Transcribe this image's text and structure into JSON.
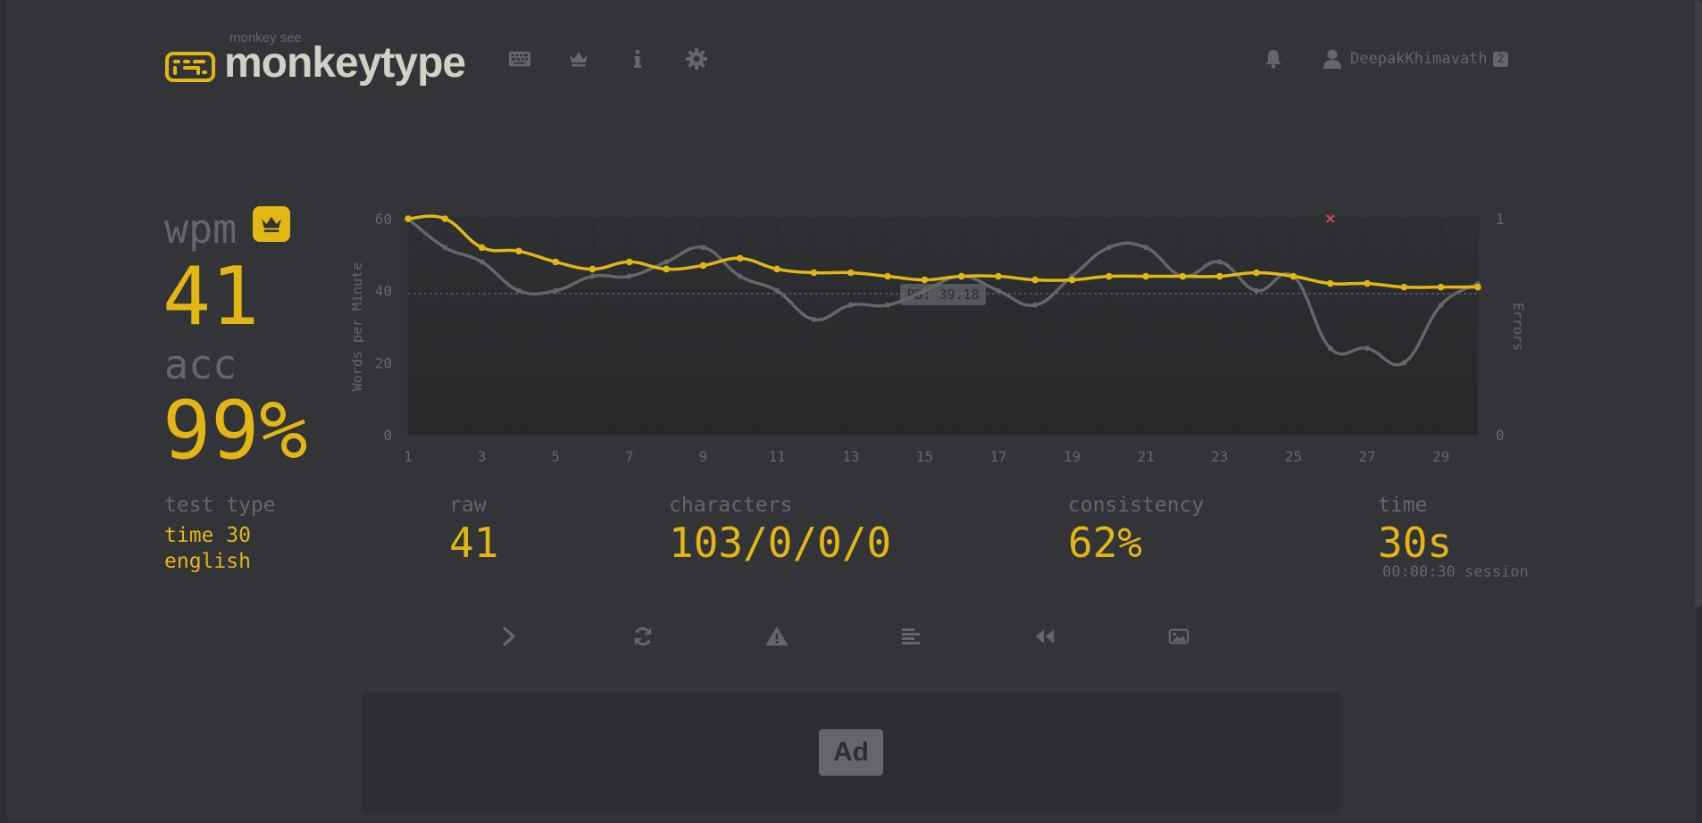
{
  "header": {
    "logo_top": "monkey see",
    "logo_text": "monkeytype",
    "nav": [
      {
        "icon": "keyboard-icon"
      },
      {
        "icon": "crown-icon"
      },
      {
        "icon": "info-icon"
      },
      {
        "icon": "gear-icon"
      }
    ],
    "user": {
      "name": "DeepakKhimavath",
      "badge": "2"
    }
  },
  "result": {
    "wpm_label": "wpm",
    "wpm": "41",
    "acc_label": "acc",
    "acc": "99%"
  },
  "stats": {
    "test_type_label": "test type",
    "test_type_line1": "time 30",
    "test_type_line2": "english",
    "raw_label": "raw",
    "raw": "41",
    "characters_label": "characters",
    "characters": "103/0/0/0",
    "consistency_label": "consistency",
    "consistency": "62%",
    "time_label": "time",
    "time": "30s",
    "session": "00:00:30 session"
  },
  "chart_data": {
    "type": "line",
    "ylabel": "Words per Minute",
    "y2label": "Errors",
    "ylim": [
      0,
      60
    ],
    "y2lim": [
      0,
      1
    ],
    "yticks": [
      "0",
      "20",
      "40",
      "60"
    ],
    "y2ticks": [
      "0",
      "1"
    ],
    "xticks": [
      "1",
      "3",
      "5",
      "7",
      "9",
      "11",
      "13",
      "15",
      "17",
      "19",
      "21",
      "23",
      "25",
      "27",
      "29"
    ],
    "pb_label": "PB: 39.18",
    "pb_value": 39.18,
    "x": [
      1,
      2,
      3,
      4,
      5,
      6,
      7,
      8,
      9,
      10,
      11,
      12,
      13,
      14,
      15,
      16,
      17,
      18,
      19,
      20,
      21,
      22,
      23,
      24,
      25,
      26,
      27,
      28,
      29,
      30
    ],
    "series": [
      {
        "name": "wpm",
        "color": "#e2b714",
        "values": [
          60,
          60,
          52,
          51,
          48,
          46,
          48,
          46,
          47,
          49,
          46,
          45,
          45,
          44,
          43,
          44,
          44,
          43,
          43,
          44,
          44,
          44,
          44,
          45,
          44,
          42,
          42,
          41,
          41,
          41
        ]
      },
      {
        "name": "raw",
        "color": "#646669",
        "values": [
          60,
          52,
          48,
          40,
          40,
          44,
          44,
          48,
          52,
          44,
          40,
          32,
          36,
          36,
          40,
          44,
          40,
          36,
          44,
          52,
          52,
          44,
          48,
          40,
          44,
          24,
          24,
          20,
          36,
          42
        ]
      }
    ],
    "errors": [
      {
        "x": 26,
        "y": 1
      }
    ]
  },
  "actions": [
    {
      "icon": "next-test-icon"
    },
    {
      "icon": "restart-icon"
    },
    {
      "icon": "report-warning-icon"
    },
    {
      "icon": "words-history-icon"
    },
    {
      "icon": "replay-icon"
    },
    {
      "icon": "screenshot-icon"
    }
  ],
  "ad": {
    "label": "Ad"
  },
  "colors": {
    "main": "#e2b714",
    "sub": "#646669",
    "bg": "#323437",
    "text": "#d1d0c5",
    "error": "#ca4754"
  }
}
